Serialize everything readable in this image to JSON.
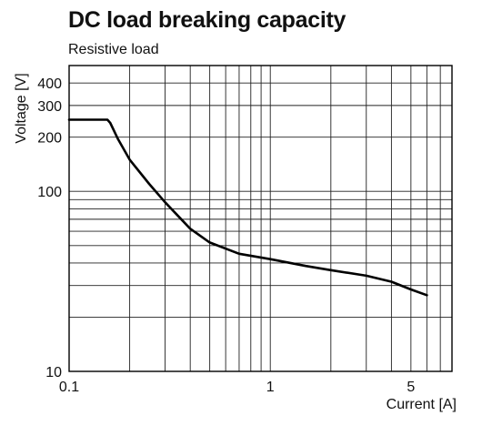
{
  "chart_data": {
    "type": "line",
    "title": "DC load breaking capacity",
    "subtitle": "Resistive load",
    "xlabel": "Current [A]",
    "ylabel": "Voltage [V]",
    "x_scale": "log",
    "y_scale": "log",
    "xlim": [
      0.1,
      8
    ],
    "ylim": [
      10,
      500
    ],
    "x_ticks": [
      0.1,
      1,
      5
    ],
    "x_tick_labels": [
      "0.1",
      "1",
      "5"
    ],
    "y_ticks": [
      10,
      100,
      200,
      300,
      400
    ],
    "y_tick_labels": [
      "10",
      "100",
      "200",
      "300",
      "400"
    ],
    "grid": true,
    "legend": "none",
    "line_color": "#000000",
    "series": [
      {
        "x": [
          0.1,
          0.155,
          0.16,
          0.175,
          0.2,
          0.25,
          0.3,
          0.4,
          0.5,
          0.7,
          1.0,
          1.5,
          2.0,
          3.0,
          4.0,
          5.0,
          6.0
        ],
        "y": [
          250,
          250,
          240,
          195,
          150,
          110,
          87,
          62,
          52,
          45,
          42,
          38.5,
          36.5,
          34,
          31.5,
          28.5,
          26.5
        ]
      }
    ]
  }
}
